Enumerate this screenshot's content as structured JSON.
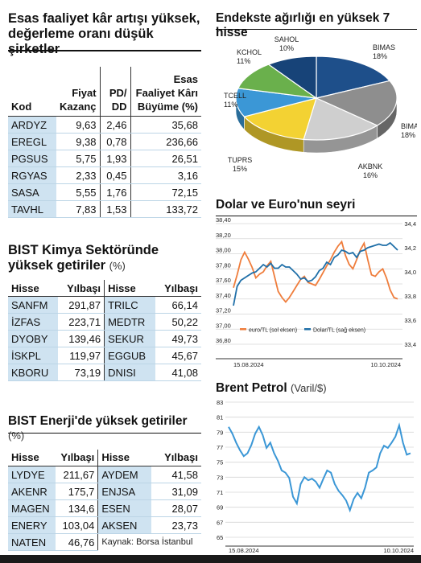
{
  "table_top": {
    "title_line1": "Esas faaliyet kâr artışı yüksek,",
    "title_line2": "değerleme oranı düşük şirketler",
    "headers": {
      "kod": "Kod",
      "fk_l1": "Fiyat",
      "fk_l2": "Kazanç",
      "pd_l1": "PD/",
      "pd_l2": "DD",
      "gr_l1": "Esas",
      "gr_l2": "Faaliyet Kârı",
      "gr_l3": "Büyüme (%)"
    },
    "rows": [
      {
        "kod": "ARDYZ",
        "fk": "9,63",
        "pd": "2,46",
        "gr": "35,68"
      },
      {
        "kod": "EREGL",
        "fk": "9,38",
        "pd": "0,78",
        "gr": "236,66"
      },
      {
        "kod": "PGSUS",
        "fk": "5,75",
        "pd": "1,93",
        "gr": "26,51"
      },
      {
        "kod": "RGYAS",
        "fk": "2,33",
        "pd": "0,45",
        "gr": "3,16"
      },
      {
        "kod": "SASA",
        "fk": "5,55",
        "pd": "1,76",
        "gr": "72,15"
      },
      {
        "kod": "TAVHL",
        "fk": "7,83",
        "pd": "1,53",
        "gr": "133,72"
      }
    ]
  },
  "table_kimya": {
    "title_line1": "BIST  Kimya Sektöründe",
    "title_line2": "yüksek getiriler",
    "unit": "(%)",
    "headers": {
      "hisse": "Hisse",
      "yil": "Yılbaşı"
    },
    "rows": [
      {
        "h1": "SANFM",
        "v1": "291,87",
        "h2": "TRILC",
        "v2": "66,14"
      },
      {
        "h1": "İZFAS",
        "v1": "223,71",
        "h2": "MEDTR",
        "v2": "50,22"
      },
      {
        "h1": "DYOBY",
        "v1": "139,46",
        "h2": "SEKUR",
        "v2": "49,73"
      },
      {
        "h1": "İSKPL",
        "v1": "119,97",
        "h2": "EGGUB",
        "v2": "45,67"
      },
      {
        "h1": "KBORU",
        "v1": "73,19",
        "h2": "DNISI",
        "v2": "41,08"
      }
    ]
  },
  "table_enerji": {
    "title": "BIST Enerji'de yüksek getiriler",
    "unit": "(%)",
    "headers": {
      "hisse": "Hisse",
      "yil": "Yılbaşı"
    },
    "rows": [
      {
        "h1": "LYDYE",
        "v1": "211,67",
        "h2": "AYDEM",
        "v2": "41,58"
      },
      {
        "h1": "AKENR",
        "v1": "175,7",
        "h2": "ENJSA",
        "v2": "31,09"
      },
      {
        "h1": "MAGEN",
        "v1": "134,6",
        "h2": "ESEN",
        "v2": "28,07"
      },
      {
        "h1": "ENERY",
        "v1": "103,04",
        "h2": "AKSEN",
        "v2": "23,73"
      },
      {
        "h1": "NATEN",
        "v1": "46,76",
        "h2": "",
        "v2": ""
      }
    ],
    "source": "Kaynak: Borsa İstanbul"
  },
  "chart_data": [
    {
      "type": "pie",
      "title": "Endekste ağırlığı en yüksek 7 hisse",
      "slices": [
        {
          "label": "BIMAS",
          "pct_label": "18%",
          "value": 18,
          "color": "#1e4f8a"
        },
        {
          "label": "BIMAS",
          "pct_label": "18%",
          "value": 18,
          "color": "#8e8e8e"
        },
        {
          "label": "AKBNK",
          "pct_label": "16%",
          "value": 16,
          "color": "#cfcfcf"
        },
        {
          "label": "TUPRS",
          "pct_label": "15%",
          "value": 15,
          "color": "#f3d233"
        },
        {
          "label": "TCELL",
          "pct_label": "11%",
          "value": 11,
          "color": "#3b97d6"
        },
        {
          "label": "KCHOL",
          "pct_label": "11%",
          "value": 11,
          "color": "#6ab04c"
        },
        {
          "label": "SAHOL",
          "pct_label": "10%",
          "value": 10,
          "color": "#174378"
        }
      ]
    },
    {
      "type": "line",
      "title": "Dolar ve Euro'nun seyri",
      "x_labels": [
        "15.08.2024",
        "10.10.2024"
      ],
      "left_axis": {
        "ticks": [
          "38,40",
          "38,20",
          "38,00",
          "37,80",
          "37,60",
          "37,40",
          "37,20",
          "37,00",
          "36,80"
        ],
        "ylim": [
          36.8,
          38.4
        ]
      },
      "right_axis": {
        "ticks": [
          "34,4",
          "34,2",
          "34,0",
          "33,8",
          "33,6",
          "33,4"
        ],
        "ylim": [
          33.4,
          34.4
        ]
      },
      "series": [
        {
          "name": "euro/TL (sol eksen)",
          "color": "#ef7d3c",
          "axis": "left",
          "values": [
            37.55,
            37.72,
            37.92,
            38.02,
            37.93,
            37.82,
            37.68,
            37.73,
            37.76,
            37.84,
            37.9,
            37.7,
            37.5,
            37.42,
            37.36,
            37.42,
            37.5,
            37.58,
            37.66,
            37.7,
            37.62,
            37.6,
            37.58,
            37.66,
            37.75,
            37.84,
            37.92,
            38.02,
            38.1,
            38.16,
            37.98,
            37.86,
            37.8,
            37.92,
            38.05,
            38.14,
            37.92,
            37.72,
            37.7,
            37.76,
            37.8,
            37.68,
            37.52,
            37.42,
            37.4
          ]
        },
        {
          "name": "Dolar/TL (sağ eksen)",
          "color": "#1f6fa8",
          "axis": "right",
          "values": [
            33.72,
            33.88,
            33.93,
            33.95,
            33.97,
            33.99,
            34.0,
            34.03,
            34.06,
            34.04,
            34.07,
            34.03,
            34.03,
            34.06,
            34.04,
            34.04,
            34.01,
            33.98,
            33.94,
            33.95,
            33.92,
            33.93,
            33.96,
            34.01,
            34.03,
            34.08,
            34.06,
            34.12,
            34.14,
            34.18,
            34.17,
            34.15,
            34.16,
            34.12,
            34.17,
            34.18,
            34.2,
            34.21,
            34.22,
            34.23,
            34.22,
            34.22,
            34.24,
            34.21,
            34.18
          ]
        }
      ]
    },
    {
      "type": "line",
      "title": "Brent Petrol",
      "unit": "(Varil/$)",
      "x_labels": [
        "15.08.2024",
        "10.10.2024"
      ],
      "y_ticks": [
        "83",
        "81",
        "79",
        "77",
        "75",
        "73",
        "71",
        "69",
        "67",
        "65"
      ],
      "ylim": [
        65,
        83
      ],
      "series": [
        {
          "name": "",
          "color": "#3b97d6",
          "values": [
            79.7,
            78.8,
            77.6,
            76.6,
            75.8,
            76.2,
            77.3,
            78.8,
            79.7,
            78.6,
            76.9,
            77.6,
            76.2,
            75.2,
            73.9,
            73.6,
            72.9,
            70.4,
            69.5,
            72.1,
            73.0,
            72.6,
            72.8,
            72.4,
            71.6,
            72.8,
            73.9,
            73.6,
            72.1,
            71.2,
            70.6,
            69.9,
            68.6,
            70.1,
            70.9,
            70.2,
            71.6,
            73.6,
            73.9,
            74.3,
            76.2,
            77.2,
            76.9,
            77.6,
            78.4,
            79.9,
            77.6,
            76.0,
            76.2
          ]
        }
      ]
    }
  ]
}
